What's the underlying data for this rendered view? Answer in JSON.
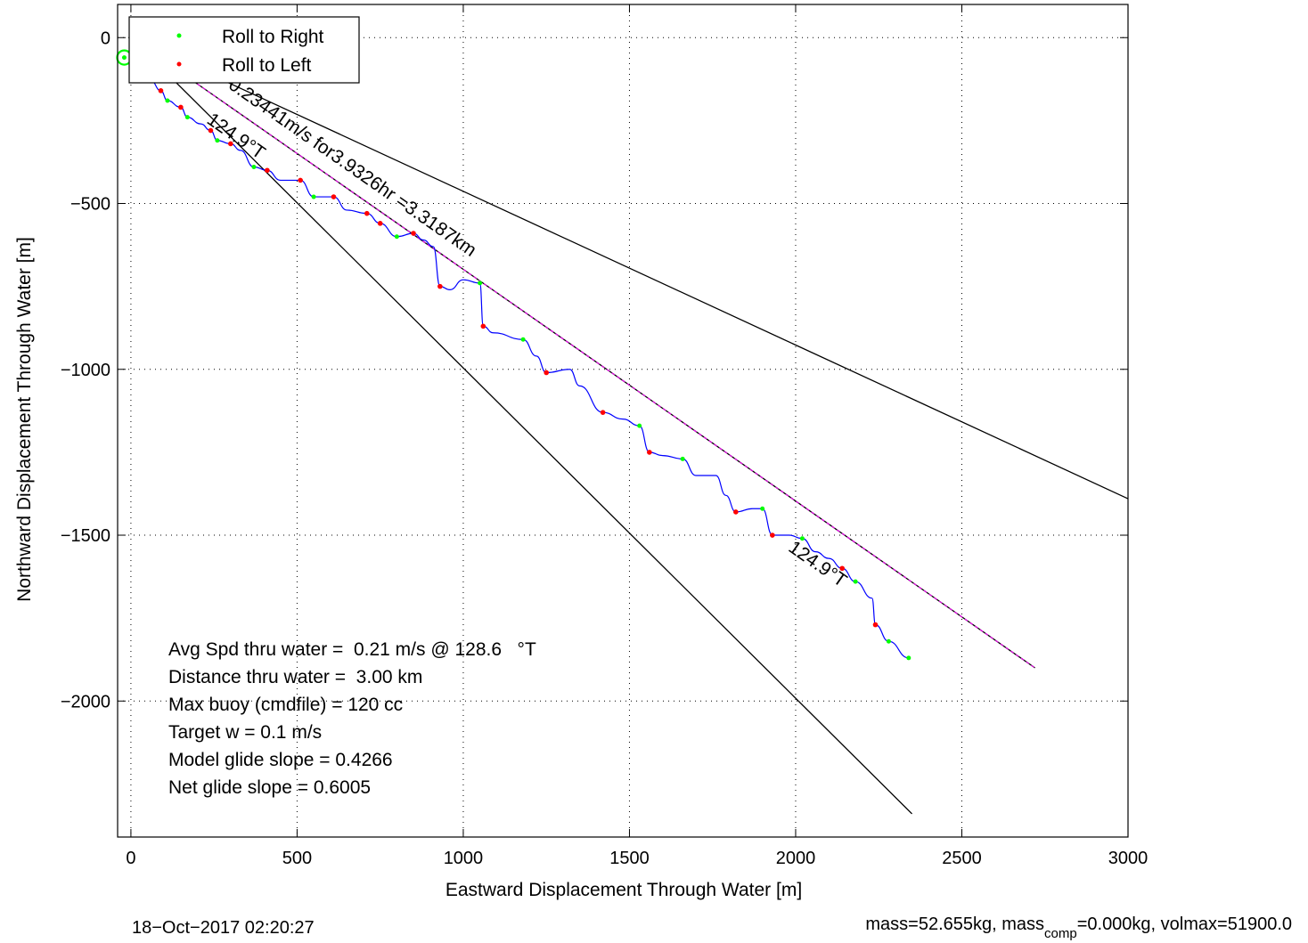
{
  "chart_data": {
    "type": "line",
    "xlabel": "Eastward Displacement Through Water [m]",
    "ylabel": "Northward Displacement Through Water [m]",
    "xlim": [
      -40,
      3000
    ],
    "ylim": [
      -2410,
      100
    ],
    "xticks": [
      0,
      500,
      1000,
      1500,
      2000,
      2500,
      3000
    ],
    "yticks": [
      0,
      -500,
      -1000,
      -1500,
      -2000
    ],
    "grid": true,
    "legend": {
      "placement": "top-left",
      "entries": [
        {
          "label": "Roll to Right",
          "color": "#00ff00"
        },
        {
          "label": "Roll to Left",
          "color": "#ff0000"
        }
      ]
    },
    "series": [
      {
        "color": "#0000ff",
        "points": [
          [
            0,
            0
          ],
          [
            20,
            -90
          ],
          [
            60,
            -130
          ],
          [
            90,
            -160
          ],
          [
            110,
            -190
          ],
          [
            150,
            -210
          ],
          [
            170,
            -240
          ],
          [
            210,
            -260
          ],
          [
            240,
            -280
          ],
          [
            260,
            -310
          ],
          [
            300,
            -320
          ],
          [
            330,
            -340
          ],
          [
            370,
            -390
          ],
          [
            410,
            -400
          ],
          [
            450,
            -430
          ],
          [
            510,
            -430
          ],
          [
            550,
            -480
          ],
          [
            610,
            -480
          ],
          [
            650,
            -520
          ],
          [
            710,
            -530
          ],
          [
            750,
            -560
          ],
          [
            800,
            -600
          ],
          [
            850,
            -590
          ],
          [
            880,
            -610
          ],
          [
            910,
            -630
          ],
          [
            930,
            -750
          ],
          [
            960,
            -760
          ],
          [
            1000,
            -730
          ],
          [
            1050,
            -740
          ],
          [
            1060,
            -870
          ],
          [
            1090,
            -890
          ],
          [
            1180,
            -910
          ],
          [
            1220,
            -960
          ],
          [
            1250,
            -1010
          ],
          [
            1320,
            -1000
          ],
          [
            1350,
            -1050
          ],
          [
            1420,
            -1130
          ],
          [
            1480,
            -1150
          ],
          [
            1530,
            -1170
          ],
          [
            1560,
            -1250
          ],
          [
            1600,
            -1260
          ],
          [
            1660,
            -1270
          ],
          [
            1700,
            -1320
          ],
          [
            1760,
            -1320
          ],
          [
            1790,
            -1380
          ],
          [
            1820,
            -1430
          ],
          [
            1870,
            -1420
          ],
          [
            1900,
            -1420
          ],
          [
            1930,
            -1500
          ],
          [
            1980,
            -1500
          ],
          [
            2020,
            -1510
          ],
          [
            2060,
            -1550
          ],
          [
            2100,
            -1570
          ],
          [
            2140,
            -1600
          ],
          [
            2180,
            -1640
          ],
          [
            2230,
            -1690
          ],
          [
            2240,
            -1770
          ],
          [
            2280,
            -1820
          ],
          [
            2340,
            -1870
          ]
        ]
      }
    ],
    "roll_right_points": [
      [
        0,
        0
      ],
      [
        -20,
        -60
      ],
      [
        60,
        -130
      ],
      [
        110,
        -190
      ],
      [
        170,
        -240
      ],
      [
        260,
        -310
      ],
      [
        370,
        -390
      ],
      [
        550,
        -480
      ],
      [
        800,
        -600
      ],
      [
        1050,
        -740
      ],
      [
        1180,
        -910
      ],
      [
        1530,
        -1170
      ],
      [
        1660,
        -1270
      ],
      [
        1900,
        -1420
      ],
      [
        2020,
        -1510
      ],
      [
        2180,
        -1640
      ],
      [
        2280,
        -1820
      ],
      [
        2340,
        -1870
      ]
    ],
    "roll_left_points": [
      [
        20,
        -90
      ],
      [
        90,
        -160
      ],
      [
        150,
        -210
      ],
      [
        240,
        -280
      ],
      [
        300,
        -320
      ],
      [
        410,
        -400
      ],
      [
        510,
        -430
      ],
      [
        610,
        -480
      ],
      [
        710,
        -530
      ],
      [
        750,
        -560
      ],
      [
        850,
        -590
      ],
      [
        930,
        -750
      ],
      [
        1060,
        -870
      ],
      [
        1250,
        -1010
      ],
      [
        1420,
        -1130
      ],
      [
        1560,
        -1250
      ],
      [
        1820,
        -1430
      ],
      [
        1930,
        -1500
      ],
      [
        2140,
        -1600
      ],
      [
        2240,
        -1770
      ]
    ],
    "bearing_lines": [
      {
        "from": [
          0,
          0
        ],
        "to": [
          3000,
          -1390
        ],
        "color": "#000000"
      },
      {
        "from": [
          0,
          0
        ],
        "to": [
          2350,
          -2340
        ],
        "color": "#000000"
      },
      {
        "from": [
          0,
          0
        ],
        "to": [
          2720,
          -1900
        ],
        "color": "#000000"
      },
      {
        "from": [
          0,
          0
        ],
        "to": [
          2720,
          -1900
        ],
        "color": "#ff00ff"
      }
    ],
    "annotations": [
      {
        "text": "0.23441m/s for3.9326hr =3.3187km",
        "at": [
          290,
          -150
        ],
        "angle": 34.9
      },
      {
        "text": "124.9°T",
        "at": [
          225,
          -255
        ],
        "angle": 34.9
      },
      {
        "text": "124.9°T",
        "at": [
          1975,
          -1545
        ],
        "angle": 34.9
      }
    ],
    "stats": [
      "Avg Spd thru water =  0.21 m/s @ 128.6   °T",
      "Distance thru water =  3.00 km",
      "Max buoy (cmdfile) = 120 cc",
      "Target w = 0.1 m/s",
      "Model glide slope = 0.4266",
      "Net glide slope = 0.6005"
    ]
  },
  "footer": {
    "timestamp": "18−Oct−2017 02:20:27",
    "mass_text_a": "mass=52.655kg, mass",
    "mass_sub": "comp",
    "mass_text_b": "=0.000kg, volmax=51900.0"
  }
}
